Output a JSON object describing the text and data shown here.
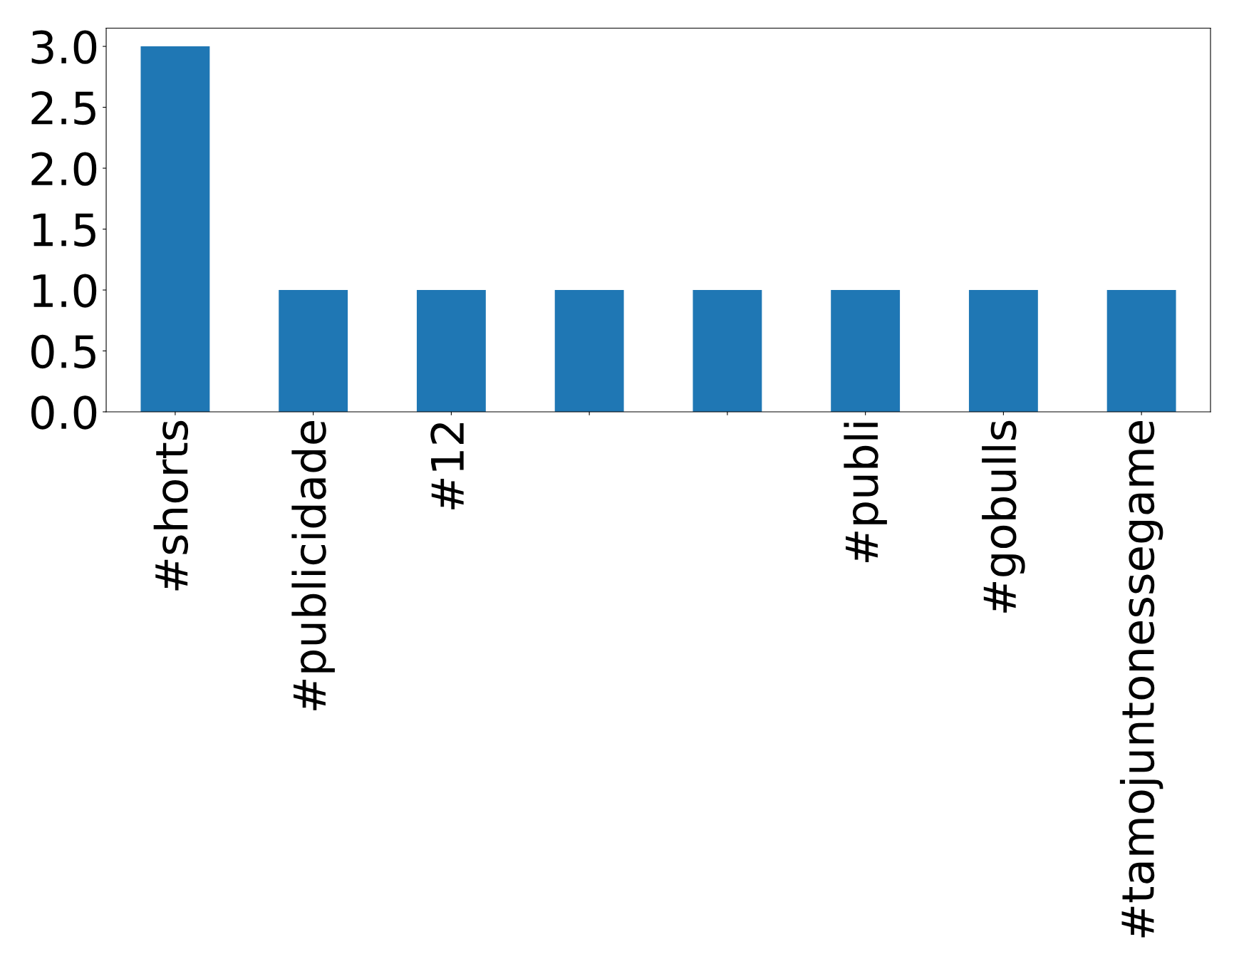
{
  "chart_data": {
    "type": "bar",
    "categories": [
      "#shorts",
      "#publicidade",
      "#12",
      null,
      null,
      "#publi",
      "#gobulls",
      "#tamojuntonessegame"
    ],
    "values": [
      3,
      1,
      1,
      1,
      1,
      1,
      1,
      1
    ],
    "color": "#1f77b4",
    "ylim": [
      0,
      3.15
    ],
    "yticks": [
      {
        "value": 0,
        "label": "0.0"
      },
      0.5,
      {
        "value": 1,
        "label": "1.0"
      },
      1.5,
      {
        "value": 2,
        "label": "2.0"
      },
      2.5,
      {
        "value": 3,
        "label": "3.0"
      }
    ],
    "grid": false,
    "legend": false
  }
}
